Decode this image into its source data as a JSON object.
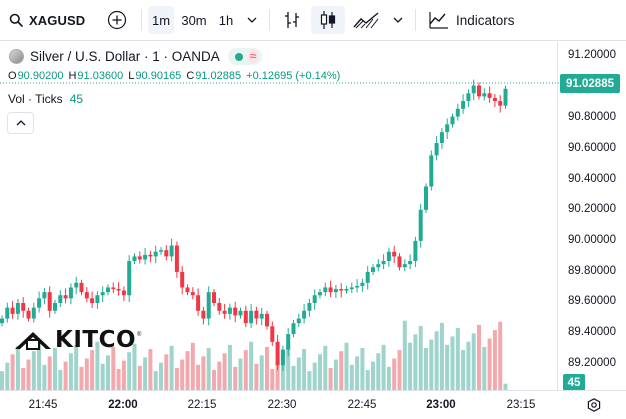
{
  "toolbar": {
    "symbol": "XAGUSD",
    "intervals": [
      "1m",
      "30m",
      "1h"
    ],
    "active_interval": "1m",
    "indicators_label": "Indicators"
  },
  "legend": {
    "title": "Silver / U.S. Dollar · 1 · OANDA",
    "open_label": "O",
    "open": "90.90200",
    "high_label": "H",
    "high": "91.03600",
    "low_label": "L",
    "low": "90.90165",
    "close_label": "C",
    "close": "91.02885",
    "change": "+0.12695 (+0.14%)",
    "status_wave": "≈",
    "volume_label": "Vol · Ticks",
    "volume_value": "45"
  },
  "price_scale": {
    "labels": [
      "91.20000",
      "90.80000",
      "90.60000",
      "90.40000",
      "90.20000",
      "90.00000",
      "89.80000",
      "89.60000",
      "89.40000",
      "89.20000"
    ],
    "current_price": "91.02885",
    "volume_badge": "45"
  },
  "time_scale": {
    "labels": [
      {
        "text": "21:45",
        "bold": false
      },
      {
        "text": "22:00",
        "bold": true
      },
      {
        "text": "22:15",
        "bold": false
      },
      {
        "text": "22:30",
        "bold": false
      },
      {
        "text": "22:45",
        "bold": false
      },
      {
        "text": "23:00",
        "bold": true
      },
      {
        "text": "23:15",
        "bold": false
      }
    ]
  },
  "watermark": {
    "text": "KITCO",
    "mark": "®"
  },
  "colors": {
    "up": "#22ab94",
    "down": "#f23645",
    "up_vol": "#9ed4cb",
    "down_vol": "#f2a9ad",
    "accent": "#22ab94"
  },
  "chart_data": {
    "type": "candlestick",
    "title": "Silver / U.S. Dollar · 1 · OANDA",
    "xlabel": "",
    "ylabel": "",
    "ylim": [
      89.09,
      91.33
    ],
    "x_range": [
      "21:38",
      "23:12"
    ],
    "candle_interval_minutes": 1,
    "approx_closes": [
      89.55,
      89.62,
      89.58,
      89.65,
      89.6,
      89.55,
      89.62,
      89.68,
      89.72,
      89.6,
      89.65,
      89.7,
      89.68,
      89.75,
      89.78,
      89.72,
      89.68,
      89.65,
      89.7,
      89.72,
      89.75,
      89.74,
      89.73,
      89.7,
      89.92,
      89.95,
      89.93,
      89.96,
      89.95,
      89.98,
      89.99,
      89.95,
      90.02,
      89.85,
      89.75,
      89.72,
      89.7,
      89.6,
      89.55,
      89.72,
      89.65,
      89.6,
      89.58,
      89.62,
      89.57,
      89.6,
      89.52,
      89.6,
      89.55,
      89.58,
      89.5,
      89.4,
      89.25,
      89.35,
      89.45,
      89.52,
      89.55,
      89.6,
      89.65,
      89.7,
      89.72,
      89.75,
      89.72,
      89.74,
      89.73,
      89.74,
      89.75,
      89.76,
      89.78,
      89.85,
      89.88,
      89.9,
      89.92,
      89.98,
      89.95,
      89.88,
      89.9,
      89.92,
      90.05,
      90.25,
      90.4,
      90.6,
      90.68,
      90.75,
      90.8,
      90.85,
      90.9,
      90.95,
      91.0,
      91.05,
      90.98,
      91.0,
      90.97,
      90.95,
      90.92,
      91.02885
    ],
    "volume_last": 45,
    "current_close": 91.02885
  }
}
